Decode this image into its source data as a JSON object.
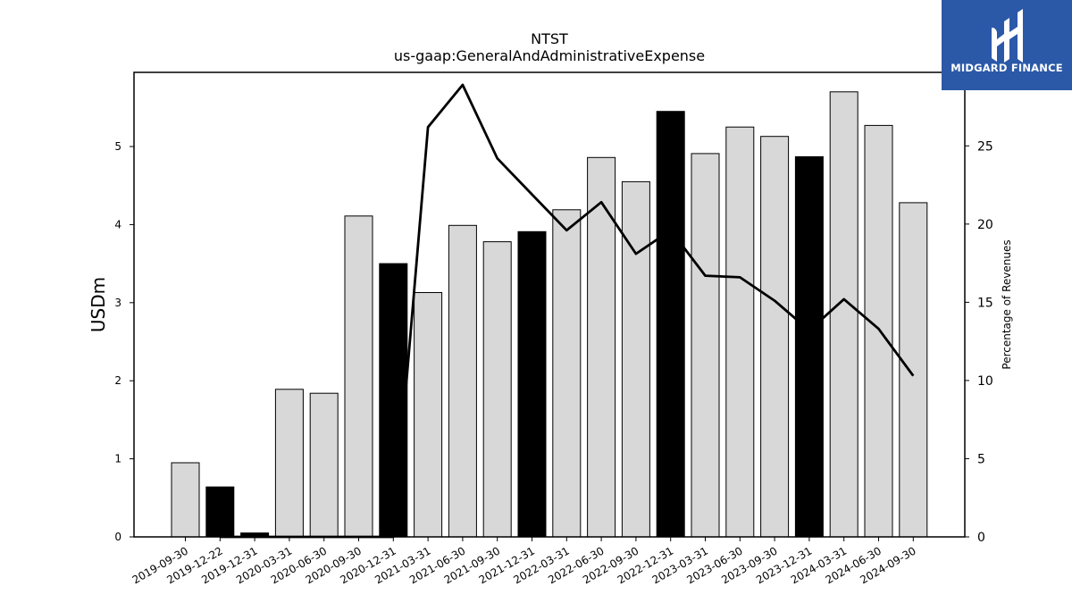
{
  "brand": {
    "name": "MIDGARD FINANCE",
    "logo_icon": "midgard-m-logo-icon",
    "background": "#2b59a8"
  },
  "chart_data": {
    "type": "bar",
    "title": "NTST",
    "subtitle": "us-gaap:GeneralAndAdministrativeExpense",
    "ylabel": "USDm",
    "y2label": "Percentage of Revenues",
    "ylim": [
      0,
      5.95
    ],
    "y2lim": [
      0,
      29.7
    ],
    "yticks": [
      0,
      1,
      2,
      3,
      4,
      5
    ],
    "y2ticks": [
      0,
      5,
      10,
      15,
      20,
      25
    ],
    "categories": [
      "2019-09-30",
      "2019-12-22",
      "2019-12-31",
      "2020-03-31",
      "2020-06-30",
      "2020-09-30",
      "2020-12-31",
      "2021-03-31",
      "2021-06-30",
      "2021-09-30",
      "2021-12-31",
      "2022-03-31",
      "2022-06-30",
      "2022-09-30",
      "2022-12-31",
      "2023-03-31",
      "2023-06-30",
      "2023-09-30",
      "2023-12-31",
      "2024-03-31",
      "2024-06-30",
      "2024-09-30"
    ],
    "bar_values": [
      0.95,
      0.64,
      0.05,
      1.89,
      1.84,
      4.11,
      3.5,
      3.13,
      3.99,
      3.78,
      3.91,
      4.19,
      4.86,
      4.55,
      5.45,
      4.91,
      5.25,
      5.13,
      4.87,
      5.7,
      5.27,
      4.28
    ],
    "bar_highlight": [
      false,
      true,
      true,
      false,
      false,
      false,
      true,
      false,
      false,
      false,
      true,
      false,
      false,
      false,
      true,
      false,
      false,
      false,
      true,
      false,
      false,
      false
    ],
    "line_values": [
      null,
      0.0,
      0.0,
      0.0,
      0.0,
      0.0,
      0.0,
      26.2,
      28.9,
      24.2,
      21.9,
      19.6,
      21.4,
      18.1,
      19.6,
      16.7,
      16.6,
      15.1,
      13.2,
      15.2,
      13.3,
      10.3
    ],
    "colors": {
      "bar": "#d8d8d8",
      "bar_highlight": "#000000",
      "line": "#000000"
    },
    "grid": false,
    "legend": "none"
  }
}
